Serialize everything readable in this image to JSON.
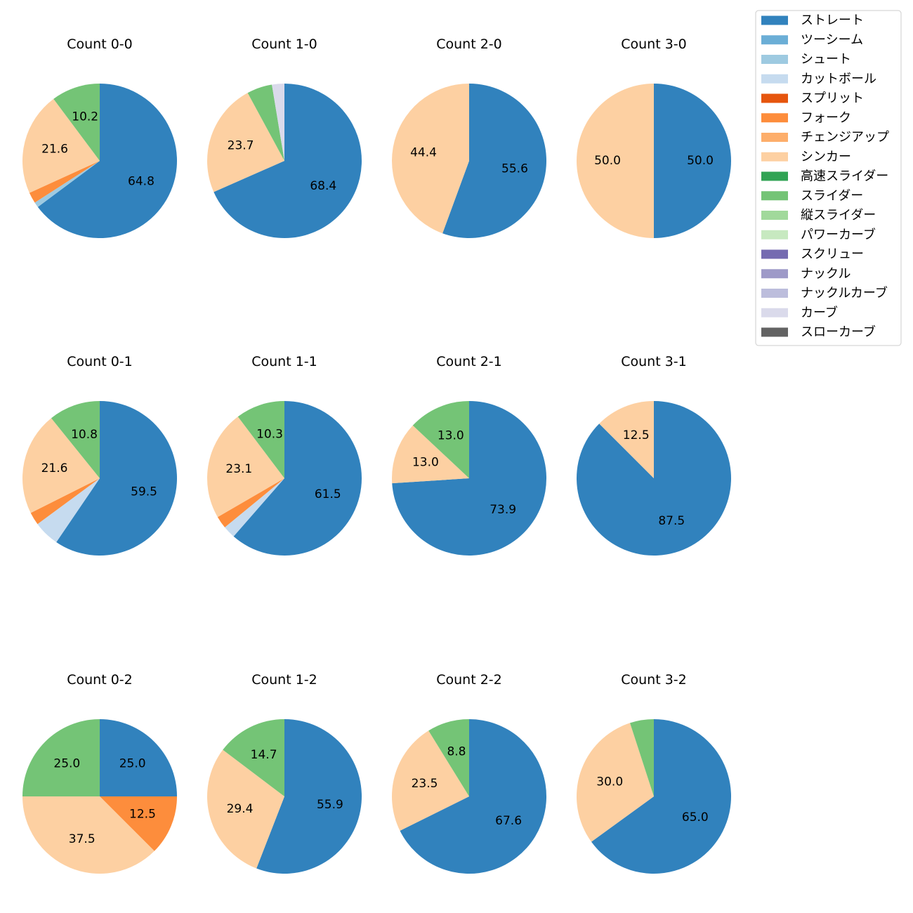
{
  "legend": {
    "position": "top-right",
    "entries": [
      {
        "label": "ストレート",
        "color": "#3182bd"
      },
      {
        "label": "ツーシーム",
        "color": "#6baed6"
      },
      {
        "label": "シュート",
        "color": "#9ecae1"
      },
      {
        "label": "カットボール",
        "color": "#c6dbef"
      },
      {
        "label": "スプリット",
        "color": "#e6550d"
      },
      {
        "label": "フォーク",
        "color": "#fd8d3c"
      },
      {
        "label": "チェンジアップ",
        "color": "#fdae6b"
      },
      {
        "label": "シンカー",
        "color": "#fdd0a2"
      },
      {
        "label": "高速スライダー",
        "color": "#31a354"
      },
      {
        "label": "スライダー",
        "color": "#74c476"
      },
      {
        "label": "縦スライダー",
        "color": "#a1d99b"
      },
      {
        "label": "パワーカーブ",
        "color": "#c7e9c0"
      },
      {
        "label": "スクリュー",
        "color": "#756bb1"
      },
      {
        "label": "ナックル",
        "color": "#9e9ac8"
      },
      {
        "label": "ナックルカーブ",
        "color": "#bcbddc"
      },
      {
        "label": "カーブ",
        "color": "#dadaeb"
      },
      {
        "label": "スローカーブ",
        "color": "#636363"
      }
    ]
  },
  "chart_data": [
    {
      "type": "pie",
      "title": "Count 0-0",
      "slices": [
        {
          "category": "ストレート",
          "value": 64.8,
          "label": "64.8"
        },
        {
          "category": "シュート",
          "value": 1.1,
          "label": ""
        },
        {
          "category": "フォーク",
          "value": 2.3,
          "label": ""
        },
        {
          "category": "シンカー",
          "value": 21.6,
          "label": "21.6"
        },
        {
          "category": "スライダー",
          "value": 10.2,
          "label": "10.2"
        }
      ]
    },
    {
      "type": "pie",
      "title": "Count 1-0",
      "slices": [
        {
          "category": "ストレート",
          "value": 68.4,
          "label": "68.4"
        },
        {
          "category": "シンカー",
          "value": 23.7,
          "label": "23.7"
        },
        {
          "category": "スライダー",
          "value": 5.3,
          "label": ""
        },
        {
          "category": "カーブ",
          "value": 2.6,
          "label": ""
        }
      ]
    },
    {
      "type": "pie",
      "title": "Count 2-0",
      "slices": [
        {
          "category": "ストレート",
          "value": 55.6,
          "label": "55.6"
        },
        {
          "category": "シンカー",
          "value": 44.4,
          "label": "44.4"
        }
      ]
    },
    {
      "type": "pie",
      "title": "Count 3-0",
      "slices": [
        {
          "category": "ストレート",
          "value": 50.0,
          "label": "50.0"
        },
        {
          "category": "シンカー",
          "value": 50.0,
          "label": "50.0"
        }
      ]
    },
    {
      "type": "pie",
      "title": "Count 0-1",
      "slices": [
        {
          "category": "ストレート",
          "value": 59.5,
          "label": "59.5"
        },
        {
          "category": "カットボール",
          "value": 5.4,
          "label": ""
        },
        {
          "category": "フォーク",
          "value": 2.7,
          "label": ""
        },
        {
          "category": "シンカー",
          "value": 21.6,
          "label": "21.6"
        },
        {
          "category": "スライダー",
          "value": 10.8,
          "label": "10.8"
        }
      ]
    },
    {
      "type": "pie",
      "title": "Count 1-1",
      "slices": [
        {
          "category": "ストレート",
          "value": 61.5,
          "label": "61.5"
        },
        {
          "category": "カットボール",
          "value": 2.6,
          "label": ""
        },
        {
          "category": "フォーク",
          "value": 2.6,
          "label": ""
        },
        {
          "category": "シンカー",
          "value": 23.1,
          "label": "23.1"
        },
        {
          "category": "スライダー",
          "value": 10.3,
          "label": "10.3"
        }
      ]
    },
    {
      "type": "pie",
      "title": "Count 2-1",
      "slices": [
        {
          "category": "ストレート",
          "value": 73.9,
          "label": "73.9"
        },
        {
          "category": "シンカー",
          "value": 13.0,
          "label": "13.0"
        },
        {
          "category": "スライダー",
          "value": 13.0,
          "label": "13.0"
        }
      ]
    },
    {
      "type": "pie",
      "title": "Count 3-1",
      "slices": [
        {
          "category": "ストレート",
          "value": 87.5,
          "label": "87.5"
        },
        {
          "category": "シンカー",
          "value": 12.5,
          "label": "12.5"
        }
      ]
    },
    {
      "type": "pie",
      "title": "Count 0-2",
      "slices": [
        {
          "category": "ストレート",
          "value": 25.0,
          "label": "25.0"
        },
        {
          "category": "フォーク",
          "value": 12.5,
          "label": "12.5"
        },
        {
          "category": "シンカー",
          "value": 37.5,
          "label": "37.5"
        },
        {
          "category": "スライダー",
          "value": 25.0,
          "label": "25.0"
        }
      ]
    },
    {
      "type": "pie",
      "title": "Count 1-2",
      "slices": [
        {
          "category": "ストレート",
          "value": 55.9,
          "label": "55.9"
        },
        {
          "category": "シンカー",
          "value": 29.4,
          "label": "29.4"
        },
        {
          "category": "スライダー",
          "value": 14.7,
          "label": "14.7"
        }
      ]
    },
    {
      "type": "pie",
      "title": "Count 2-2",
      "slices": [
        {
          "category": "ストレート",
          "value": 67.6,
          "label": "67.6"
        },
        {
          "category": "シンカー",
          "value": 23.5,
          "label": "23.5"
        },
        {
          "category": "スライダー",
          "value": 8.8,
          "label": "8.8"
        }
      ]
    },
    {
      "type": "pie",
      "title": "Count 3-2",
      "slices": [
        {
          "category": "ストレート",
          "value": 65.0,
          "label": "65.0"
        },
        {
          "category": "シンカー",
          "value": 30.0,
          "label": "30.0"
        },
        {
          "category": "スライダー",
          "value": 5.0,
          "label": ""
        }
      ]
    }
  ]
}
